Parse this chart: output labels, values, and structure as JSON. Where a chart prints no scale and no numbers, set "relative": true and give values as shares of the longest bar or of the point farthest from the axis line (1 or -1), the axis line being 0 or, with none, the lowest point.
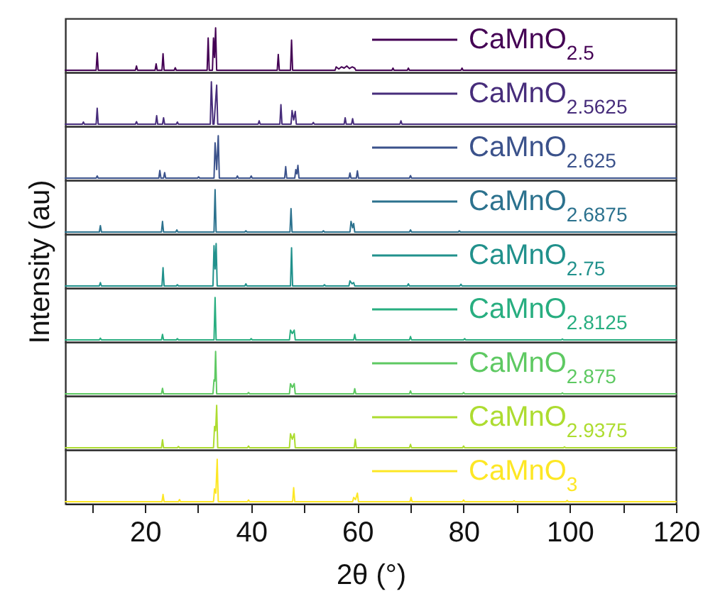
{
  "chart_data": [
    {
      "type": "line",
      "relative": true,
      "xlim": [
        5,
        120
      ],
      "tick_labels": false,
      "legend": "top right",
      "series": [
        {
          "name": "CaMnO$_{2.5}$",
          "color": "#440154",
          "x": [
            5,
            10.8,
            11.0,
            11.2,
            18.2,
            18.4,
            18.6,
            21.9,
            22.1,
            22.3,
            23.2,
            23.4,
            23.6,
            25.5,
            25.7,
            25.9,
            31.7,
            31.9,
            32.1,
            32.7,
            32.9,
            33.1,
            33.3,
            33.5,
            44.9,
            45.1,
            45.3,
            47.4,
            47.6,
            47.8,
            55.8,
            56.0,
            56.5,
            57.0,
            57.5,
            58.0,
            58.5,
            59.0,
            59.5,
            59.7,
            66.5,
            66.7,
            66.9,
            69.4,
            69.6,
            69.8,
            79.5,
            79.7,
            79.9,
            120
          ],
          "values": [
            0,
            0,
            0.41,
            0,
            0,
            0.1,
            0,
            0,
            0.15,
            0,
            0,
            0.39,
            0,
            0,
            0.06,
            0,
            0,
            0.76,
            0,
            0,
            0.76,
            0.3,
            1,
            0,
            0,
            0.37,
            0,
            0,
            0.71,
            0,
            0,
            0.08,
            0.03,
            0.08,
            0.05,
            0.1,
            0.04,
            0.08,
            0.05,
            0,
            0,
            0.05,
            0,
            0,
            0.05,
            0,
            0,
            0.05,
            0,
            0
          ]
        }
      ]
    },
    {
      "type": "line",
      "relative": true,
      "xlim": [
        5,
        120
      ],
      "tick_labels": false,
      "legend": "top right",
      "series": [
        {
          "name": "CaMnO$_{2.5625}$",
          "color": "#472d7b",
          "x": [
            5,
            8.2,
            8.4,
            8.6,
            10.8,
            11.0,
            11.2,
            18.2,
            18.4,
            18.6,
            22.0,
            22.2,
            22.4,
            23.3,
            23.5,
            23.7,
            25.9,
            26.1,
            26.3,
            32.3,
            32.5,
            32.8,
            33.0,
            33.5,
            33.7,
            41.3,
            41.5,
            41.7,
            45.4,
            45.6,
            45.8,
            47.5,
            47.7,
            48.0,
            48.3,
            48.5,
            51.5,
            51.7,
            51.9,
            57.5,
            57.7,
            57.9,
            58.9,
            59.1,
            59.3,
            68.0,
            68.2,
            68.4,
            120
          ],
          "values": [
            0,
            0,
            0.05,
            0,
            0,
            0.375,
            0,
            0,
            0.06,
            0,
            0,
            0.2,
            0,
            0,
            0.15,
            0,
            0,
            0.05,
            0,
            0,
            1,
            0,
            0,
            0.92,
            0,
            0,
            0.08,
            0,
            0,
            0.46,
            0,
            0,
            0.32,
            0.1,
            0.3,
            0,
            0,
            0.04,
            0,
            0,
            0.15,
            0,
            0,
            0.13,
            0,
            0,
            0.08,
            0,
            0
          ]
        }
      ]
    },
    {
      "type": "line",
      "relative": true,
      "xlim": [
        5,
        120
      ],
      "tick_labels": false,
      "legend": "top right",
      "series": [
        {
          "name": "CaMnO$_{2.625}$",
          "color": "#3b528b",
          "x": [
            5,
            10.8,
            11.0,
            11.2,
            22.6,
            22.8,
            23.0,
            23.5,
            23.7,
            23.9,
            29.9,
            30.1,
            30.3,
            33.0,
            33.2,
            33.5,
            33.8,
            34.0,
            37.2,
            37.4,
            37.6,
            39.8,
            40.0,
            40.2,
            46.3,
            46.5,
            46.7,
            48.2,
            48.4,
            48.6,
            48.8,
            49.0,
            58.4,
            58.6,
            58.8,
            59.8,
            60.0,
            60.2,
            69.8,
            70.0,
            70.2,
            120
          ],
          "values": [
            0,
            0,
            0.05,
            0,
            0,
            0.18,
            0,
            0,
            0.13,
            0,
            0,
            0.03,
            0,
            0,
            0.83,
            0.2,
            1,
            0,
            0,
            0.05,
            0,
            0,
            0.05,
            0,
            0,
            0.27,
            0,
            0,
            0.2,
            0.1,
            0.3,
            0,
            0,
            0.12,
            0,
            0,
            0.17,
            0,
            0,
            0.06,
            0,
            0
          ]
        }
      ]
    },
    {
      "type": "line",
      "relative": true,
      "xlim": [
        5,
        120
      ],
      "tick_labels": false,
      "legend": "top right",
      "series": [
        {
          "name": "CaMnO$_{2.6875}$",
          "color": "#2c728e",
          "x": [
            5,
            11.4,
            11.6,
            11.8,
            23.1,
            23.3,
            23.5,
            25.8,
            26.0,
            26.2,
            33.0,
            33.2,
            33.4,
            38.8,
            39.0,
            39.2,
            47.3,
            47.5,
            47.7,
            53.4,
            53.6,
            53.8,
            58.6,
            58.8,
            59.1,
            59.3,
            59.5,
            69.8,
            70.0,
            70.2,
            79.0,
            79.2,
            79.4,
            120
          ],
          "values": [
            0,
            0,
            0.15,
            0,
            0,
            0.25,
            0,
            0,
            0.05,
            0,
            0,
            1,
            0,
            0,
            0.03,
            0,
            0,
            0.55,
            0,
            0,
            0.03,
            0,
            0,
            0.25,
            0.1,
            0.2,
            0,
            0,
            0.05,
            0,
            0,
            0.03,
            0,
            0
          ]
        }
      ]
    },
    {
      "type": "line",
      "relative": true,
      "xlim": [
        5,
        120
      ],
      "tick_labels": false,
      "legend": "top right",
      "ylabel": "Intensity (au)",
      "series": [
        {
          "name": "CaMnO$_{2.75}$",
          "color": "#21918c",
          "x": [
            5,
            11.4,
            11.6,
            11.8,
            23.2,
            23.4,
            23.6,
            25.9,
            26.1,
            26.3,
            32.8,
            33.0,
            33.2,
            33.4,
            33.6,
            38.8,
            39.0,
            39.2,
            47.4,
            47.6,
            47.8,
            53.6,
            53.8,
            54.0,
            58.4,
            58.6,
            59.0,
            59.3,
            59.5,
            69.4,
            69.6,
            69.8,
            79.3,
            79.5,
            79.7,
            120
          ],
          "values": [
            0,
            0,
            0.08,
            0,
            0,
            0.43,
            0,
            0,
            0.03,
            0,
            0,
            0.95,
            0.4,
            1,
            0,
            0,
            0.05,
            0,
            0,
            0.9,
            0,
            0,
            0.03,
            0,
            0,
            0.12,
            0.05,
            0.08,
            0,
            0,
            0.05,
            0,
            0,
            0.04,
            0,
            0
          ]
        }
      ]
    },
    {
      "type": "line",
      "relative": true,
      "xlim": [
        5,
        120
      ],
      "tick_labels": false,
      "legend": "top right",
      "series": [
        {
          "name": "CaMnO$_{2.8125}$",
          "color": "#28ae80",
          "x": [
            5,
            11.4,
            11.6,
            11.8,
            23.1,
            23.3,
            23.5,
            25.9,
            26.1,
            26.3,
            33.0,
            33.2,
            33.4,
            39.8,
            40.0,
            40.2,
            47.2,
            47.4,
            47.75,
            48.1,
            48.3,
            59.3,
            59.5,
            59.7,
            69.8,
            70.0,
            70.2,
            80.0,
            80.2,
            80.4,
            98.4,
            98.6,
            98.8,
            120
          ],
          "values": [
            0,
            0,
            0.04,
            0,
            0,
            0.13,
            0,
            0,
            0.03,
            0,
            0,
            1,
            0,
            0,
            0.03,
            0,
            0,
            0.23,
            0.15,
            0.23,
            0,
            0,
            0.13,
            0,
            0,
            0.08,
            0,
            0,
            0.03,
            0,
            0,
            0.02,
            0,
            0
          ]
        }
      ]
    },
    {
      "type": "line",
      "relative": true,
      "xlim": [
        5,
        120
      ],
      "tick_labels": false,
      "legend": "top right",
      "series": [
        {
          "name": "CaMnO$_{2.875}$",
          "color": "#5ec962",
          "x": [
            5,
            23.1,
            23.3,
            23.5,
            32.8,
            33.0,
            33.15,
            33.3,
            33.5,
            39.3,
            39.5,
            39.7,
            47.2,
            47.4,
            47.75,
            48.1,
            48.3,
            59.3,
            59.5,
            59.7,
            69.8,
            70.0,
            70.2,
            79.8,
            80.0,
            80.2,
            98.4,
            98.6,
            98.8,
            120
          ],
          "values": [
            0,
            0,
            0.13,
            0,
            0,
            0.33,
            0.3,
            1,
            0,
            0,
            0.03,
            0,
            0,
            0.24,
            0.15,
            0.24,
            0,
            0,
            0.12,
            0,
            0,
            0.07,
            0,
            0,
            0.03,
            0,
            0,
            0.02,
            0,
            0
          ]
        }
      ]
    },
    {
      "type": "line",
      "relative": true,
      "xlim": [
        5,
        120
      ],
      "tick_labels": false,
      "legend": "top right",
      "series": [
        {
          "name": "CaMnO$_{2.9375}$",
          "color": "#addc30",
          "x": [
            5,
            23.1,
            23.3,
            23.5,
            26.1,
            26.3,
            26.5,
            32.9,
            33.1,
            33.3,
            33.5,
            33.7,
            39.3,
            39.5,
            39.7,
            47.2,
            47.4,
            47.75,
            48.1,
            48.3,
            59.4,
            59.6,
            59.8,
            69.8,
            70.0,
            70.2,
            79.8,
            80.0,
            80.2,
            98.8,
            99.0,
            99.2,
            120
          ],
          "values": [
            0,
            0,
            0.19,
            0,
            0,
            0.03,
            0,
            0,
            0.5,
            0.4,
            1,
            0,
            0,
            0.04,
            0,
            0,
            0.33,
            0.2,
            0.33,
            0,
            0,
            0.2,
            0,
            0,
            0.08,
            0,
            0,
            0.04,
            0,
            0,
            0.02,
            0,
            0
          ]
        }
      ]
    },
    {
      "type": "line",
      "relative": true,
      "xlim": [
        5,
        120
      ],
      "xticks": [
        {
          "value": 10,
          "label": null
        },
        20,
        {
          "value": 30,
          "label": null
        },
        40,
        {
          "value": 50,
          "label": null
        },
        60,
        {
          "value": 70,
          "label": null
        },
        80,
        {
          "value": 90,
          "label": null
        },
        100,
        {
          "value": 110,
          "label": null
        },
        120
      ],
      "tick_labels": "x",
      "legend": "top right",
      "xlabel": "2θ (°)",
      "series": [
        {
          "name": "CaMnO$_{3}$",
          "color": "#fde725",
          "x": [
            5,
            23.2,
            23.4,
            23.6,
            26.3,
            26.5,
            26.7,
            32.9,
            33.1,
            33.35,
            33.6,
            33.8,
            39.3,
            39.5,
            39.7,
            47.8,
            48.0,
            48.2,
            59.1,
            59.3,
            59.65,
            60.0,
            60.2,
            69.9,
            70.1,
            70.3,
            79.8,
            80.0,
            80.2,
            89.3,
            89.5,
            89.7,
            99.3,
            99.5,
            99.7,
            120
          ],
          "values": [
            0,
            0,
            0.17,
            0,
            0,
            0.05,
            0,
            0,
            0.3,
            0.2,
            1,
            0,
            0,
            0.04,
            0,
            0,
            0.33,
            0,
            0,
            0.1,
            0.05,
            0.2,
            0,
            0,
            0.1,
            0,
            0,
            0.04,
            0,
            0,
            0.02,
            0,
            0,
            0.03,
            0,
            0
          ]
        }
      ]
    }
  ]
}
